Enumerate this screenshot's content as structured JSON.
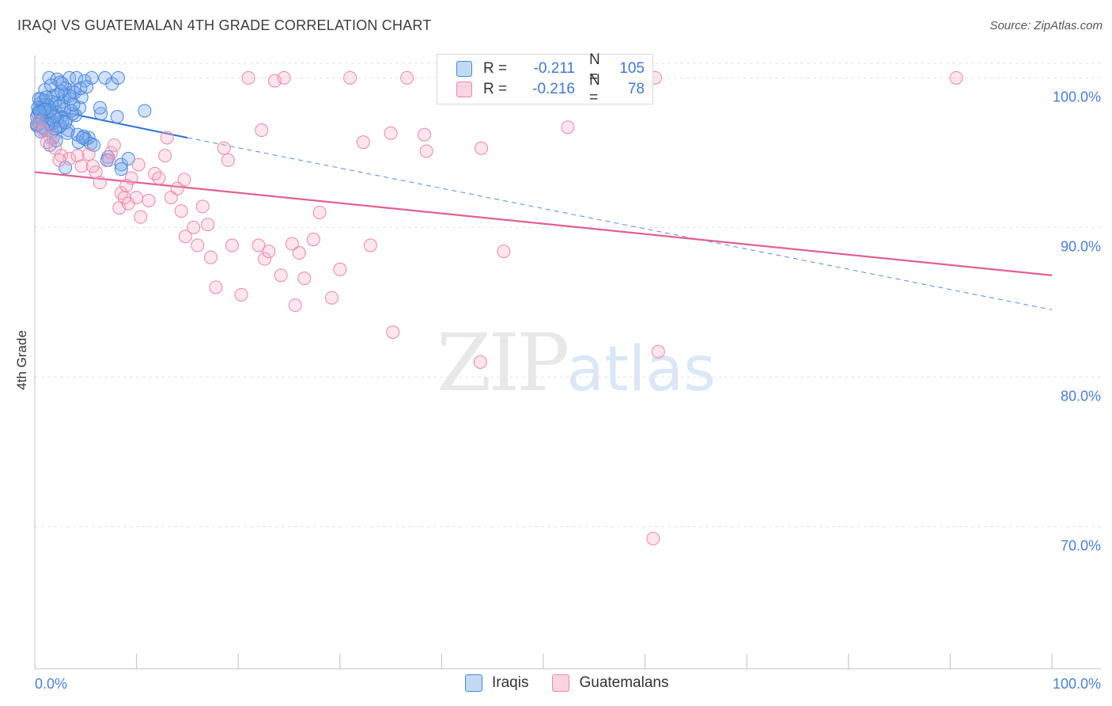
{
  "title": "IRAQI VS GUATEMALAN 4TH GRADE CORRELATION CHART",
  "source": "Source: ZipAtlas.com",
  "watermark": {
    "zip": "ZIP",
    "atlas": "atlas"
  },
  "colors": {
    "iraqi_fill": "rgba(120,170,235,0.35)",
    "iraqi_stroke": "#4a86d8",
    "iraqi_line": "#2e6fd4",
    "guat_fill": "rgba(245,170,195,0.30)",
    "guat_stroke": "#e888a8",
    "guat_line": "#e0608e",
    "tick_text": "#4a7fd4",
    "grid": "#e3e3e3"
  },
  "legend": {
    "rows": [
      {
        "r_label": "R =",
        "r_value": "-0.211",
        "n_label": "N =",
        "n_value": "105"
      },
      {
        "r_label": "R =",
        "r_value": "-0.216",
        "n_label": "N =",
        "n_value": "78"
      }
    ]
  },
  "bottom_legend": {
    "series1": "Iraqis",
    "series2": "Guatemalans"
  },
  "chart_data": {
    "type": "scatter",
    "title": "IRAQI VS GUATEMALAN 4TH GRADE CORRELATION CHART",
    "xlabel": "",
    "ylabel": "4th Grade",
    "xlim": [
      0,
      100
    ],
    "ylim": [
      60.5,
      101.5
    ],
    "x_tick_labels": [
      "0.0%",
      "100.0%"
    ],
    "y_ticks": [
      70,
      80,
      90,
      100
    ],
    "y_tick_labels": [
      "70.0%",
      "80.0%",
      "90.0%",
      "100.0%"
    ],
    "series": [
      {
        "name": "Iraqis",
        "r": -0.211,
        "n": 105,
        "trend": {
          "x0": 0,
          "y0": 98.1,
          "x1": 15,
          "y1": 96.0,
          "dash_to_x": 100,
          "dash_to_y": 84.5
        },
        "points": [
          [
            1.4,
            100
          ],
          [
            2.2,
            99.9
          ],
          [
            2.5,
            99.7
          ],
          [
            3.4,
            100
          ],
          [
            3.0,
            99.3
          ],
          [
            4.1,
            100
          ],
          [
            4.9,
            99.8
          ],
          [
            5.6,
            100
          ],
          [
            6.9,
            100
          ],
          [
            7.6,
            99.6
          ],
          [
            8.2,
            100
          ],
          [
            3.8,
            99.1
          ],
          [
            2.9,
            98.9
          ],
          [
            1.8,
            98.8
          ],
          [
            0.9,
            98.5
          ],
          [
            0.5,
            98.3
          ],
          [
            1.2,
            98.2
          ],
          [
            0.8,
            98.0
          ],
          [
            1.6,
            97.9
          ],
          [
            0.4,
            97.8
          ],
          [
            2.1,
            97.7
          ],
          [
            0.3,
            97.6
          ],
          [
            1.1,
            97.5
          ],
          [
            2.6,
            97.4
          ],
          [
            0.7,
            97.3
          ],
          [
            3.1,
            97.2
          ],
          [
            0.6,
            97.1
          ],
          [
            1.9,
            97.0
          ],
          [
            1.5,
            96.9
          ],
          [
            0.2,
            96.8
          ],
          [
            2.4,
            96.7
          ],
          [
            0.9,
            96.6
          ],
          [
            3.3,
            96.5
          ],
          [
            1.7,
            96.4
          ],
          [
            2.8,
            98.4
          ],
          [
            3.5,
            98.6
          ],
          [
            4.4,
            98.0
          ],
          [
            4.0,
            97.5
          ],
          [
            3.6,
            97.8
          ],
          [
            2.0,
            98.3
          ],
          [
            1.3,
            97.3
          ],
          [
            0.6,
            98.6
          ],
          [
            2.3,
            98.9
          ],
          [
            3.9,
            99.0
          ],
          [
            4.6,
            98.7
          ],
          [
            1.0,
            99.2
          ],
          [
            0.4,
            96.9
          ],
          [
            2.7,
            97.1
          ],
          [
            3.2,
            96.3
          ],
          [
            1.8,
            96.0
          ],
          [
            4.3,
            95.7
          ],
          [
            5.3,
            96.0
          ],
          [
            4.8,
            96.1
          ],
          [
            6.5,
            97.6
          ],
          [
            6.4,
            98.0
          ],
          [
            8.1,
            97.4
          ],
          [
            10.8,
            97.8
          ],
          [
            4.2,
            96.2
          ],
          [
            5.0,
            95.9
          ],
          [
            5.5,
            95.6
          ],
          [
            7.2,
            94.7
          ],
          [
            8.5,
            94.2
          ],
          [
            8.5,
            93.9
          ],
          [
            3.0,
            94.0
          ],
          [
            9.2,
            94.6
          ],
          [
            1.5,
            95.5
          ],
          [
            0.8,
            97.9
          ],
          [
            1.4,
            98.1
          ],
          [
            2.2,
            97.2
          ],
          [
            0.2,
            97.4
          ],
          [
            1.1,
            96.5
          ],
          [
            3.7,
            97.6
          ],
          [
            2.5,
            96.8
          ],
          [
            0.5,
            97.0
          ],
          [
            1.7,
            98.4
          ],
          [
            2.9,
            97.9
          ],
          [
            0.9,
            98.2
          ],
          [
            1.2,
            97.7
          ],
          [
            0.6,
            97.5
          ],
          [
            2.0,
            96.6
          ],
          [
            3.4,
            98.8
          ],
          [
            1.6,
            99.5
          ],
          [
            4.5,
            99.3
          ],
          [
            5.1,
            99.4
          ],
          [
            0.3,
            98.0
          ],
          [
            0.7,
            97.2
          ],
          [
            1.9,
            97.4
          ],
          [
            2.4,
            98.1
          ],
          [
            1.3,
            96.9
          ],
          [
            0.4,
            98.6
          ],
          [
            3.0,
            97.0
          ],
          [
            0.8,
            96.7
          ],
          [
            2.6,
            99.1
          ],
          [
            1.5,
            97.8
          ],
          [
            0.2,
            96.9
          ],
          [
            4.7,
            96.0
          ],
          [
            2.1,
            95.8
          ],
          [
            1.0,
            97.9
          ],
          [
            0.6,
            96.4
          ],
          [
            3.8,
            98.2
          ],
          [
            5.8,
            95.5
          ],
          [
            7.1,
            94.5
          ],
          [
            1.1,
            98.7
          ],
          [
            2.7,
            99.6
          ],
          [
            0.5,
            97.7
          ]
        ]
      },
      {
        "name": "Guatemalans",
        "r": -0.216,
        "n": 78,
        "trend": {
          "x0": 0,
          "y0": 93.7,
          "x1": 100,
          "y1": 86.8
        },
        "points": [
          [
            0.3,
            97.0
          ],
          [
            0.8,
            96.5
          ],
          [
            1.5,
            96.0
          ],
          [
            2.0,
            95.3
          ],
          [
            2.6,
            94.8
          ],
          [
            3.4,
            94.6
          ],
          [
            4.2,
            94.8
          ],
          [
            4.6,
            94.1
          ],
          [
            5.3,
            94.9
          ],
          [
            6.0,
            93.7
          ],
          [
            6.4,
            93.0
          ],
          [
            7.5,
            95.0
          ],
          [
            7.3,
            94.5
          ],
          [
            7.8,
            95.5
          ],
          [
            8.5,
            92.3
          ],
          [
            8.8,
            92.0
          ],
          [
            8.3,
            91.3
          ],
          [
            9.2,
            91.6
          ],
          [
            9.5,
            93.3
          ],
          [
            10.2,
            94.2
          ],
          [
            10.0,
            92.0
          ],
          [
            10.4,
            90.7
          ],
          [
            11.2,
            91.8
          ],
          [
            11.8,
            93.6
          ],
          [
            12.2,
            93.3
          ],
          [
            12.8,
            94.8
          ],
          [
            13.0,
            96.0
          ],
          [
            13.4,
            92.0
          ],
          [
            14.0,
            92.6
          ],
          [
            14.4,
            91.1
          ],
          [
            14.7,
            93.2
          ],
          [
            14.8,
            89.4
          ],
          [
            15.6,
            90.0
          ],
          [
            16.0,
            88.8
          ],
          [
            16.5,
            91.4
          ],
          [
            17.0,
            90.2
          ],
          [
            17.3,
            88.0
          ],
          [
            17.8,
            86.0
          ],
          [
            18.6,
            95.3
          ],
          [
            19.0,
            94.5
          ],
          [
            19.4,
            88.8
          ],
          [
            20.3,
            85.5
          ],
          [
            21.0,
            100
          ],
          [
            22.0,
            88.8
          ],
          [
            22.3,
            96.5
          ],
          [
            22.6,
            87.9
          ],
          [
            23.0,
            88.4
          ],
          [
            23.6,
            99.8
          ],
          [
            24.2,
            86.8
          ],
          [
            24.5,
            100
          ],
          [
            25.3,
            88.9
          ],
          [
            25.6,
            84.8
          ],
          [
            26.0,
            88.3
          ],
          [
            26.5,
            86.6
          ],
          [
            27.4,
            89.2
          ],
          [
            28.0,
            91.0
          ],
          [
            29.2,
            85.3
          ],
          [
            30.0,
            87.2
          ],
          [
            31.0,
            100
          ],
          [
            32.3,
            95.7
          ],
          [
            33.0,
            88.8
          ],
          [
            35.0,
            96.3
          ],
          [
            35.2,
            83.0
          ],
          [
            36.6,
            100
          ],
          [
            38.3,
            96.2
          ],
          [
            38.5,
            95.1
          ],
          [
            43.8,
            81.0
          ],
          [
            43.9,
            95.3
          ],
          [
            46.1,
            88.4
          ],
          [
            52.4,
            96.7
          ],
          [
            61.0,
            100
          ],
          [
            60.8,
            69.2
          ],
          [
            61.3,
            81.7
          ],
          [
            90.6,
            100
          ],
          [
            1.2,
            95.7
          ],
          [
            2.4,
            94.5
          ],
          [
            5.7,
            94.1
          ],
          [
            9.0,
            92.8
          ]
        ]
      }
    ]
  }
}
